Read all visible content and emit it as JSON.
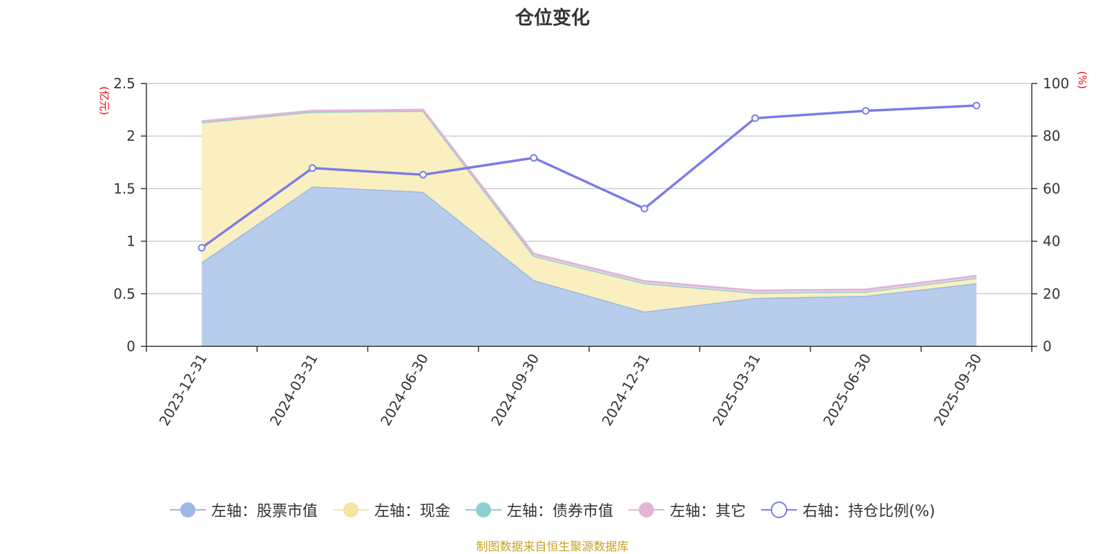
{
  "chart_data": {
    "type": "area",
    "title": "仓位变化",
    "y_left_unit": "(亿元)",
    "y_right_unit": "(%)",
    "categories": [
      "2023-12-31",
      "2024-03-31",
      "2024-06-30",
      "2024-09-30",
      "2024-12-31",
      "2025-03-31",
      "2025-06-30",
      "2025-09-30"
    ],
    "ylim_left": [
      0,
      2.5
    ],
    "yticks_left": [
      "0",
      "0.5",
      "1",
      "1.5",
      "2",
      "2.5"
    ],
    "ylim_right": [
      0,
      100
    ],
    "yticks_right": [
      "0",
      "20",
      "40",
      "60",
      "80",
      "100"
    ],
    "grid": true,
    "legend_position": "bottom",
    "series": [
      {
        "name": "左轴：股票市值",
        "axis": "left",
        "stack": true,
        "color": "#9db8e2",
        "fill": "#b8cceb",
        "values": [
          0.8,
          1.52,
          1.47,
          0.63,
          0.33,
          0.46,
          0.48,
          0.6
        ]
      },
      {
        "name": "左轴：现金",
        "axis": "left",
        "stack": true,
        "color": "#f5e6a0",
        "fill": "#faefc0",
        "values": [
          1.33,
          0.71,
          0.77,
          0.23,
          0.27,
          0.05,
          0.04,
          0.05
        ]
      },
      {
        "name": "左轴：债券市值",
        "axis": "left",
        "stack": true,
        "color": "#8ecfcf",
        "fill": "#c2e6e6",
        "values": [
          0,
          0,
          0,
          0,
          0,
          0,
          0,
          0
        ]
      },
      {
        "name": "左轴：其它",
        "axis": "left",
        "stack": true,
        "color": "#e2b4d8",
        "fill": "#f0d7ea",
        "values": [
          0.01,
          0.01,
          0.01,
          0.02,
          0.02,
          0.02,
          0.02,
          0.02
        ]
      },
      {
        "name": "右轴：持仓比例(%)",
        "axis": "right",
        "stack": false,
        "color": "#7b7be8",
        "values": [
          37.5,
          67.8,
          65.3,
          71.7,
          52.4,
          86.8,
          89.6,
          91.6
        ]
      }
    ]
  },
  "footer": "制图数据来自恒生聚源数据库"
}
